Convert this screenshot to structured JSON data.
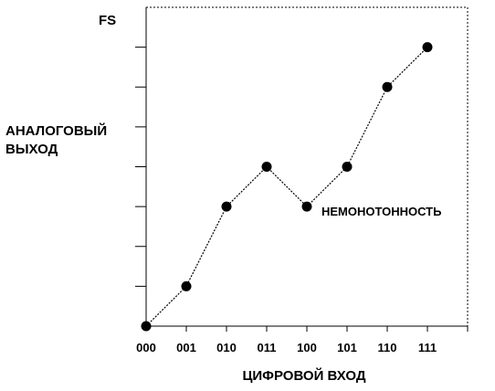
{
  "chart_data": {
    "type": "line",
    "title": "",
    "xlabel": "ЦИФРОВОЙ ВХОД",
    "ylabel_lines": [
      "АНАЛОГОВЫЙ",
      "ВЫХОД"
    ],
    "y_top_label": "FS",
    "annotation": "НЕМОНОТОННОСТЬ",
    "categories": [
      "000",
      "001",
      "010",
      "011",
      "100",
      "101",
      "110",
      "111"
    ],
    "values": [
      0,
      1,
      3,
      4,
      3,
      4,
      6,
      7
    ],
    "ylim": [
      0,
      8
    ],
    "grid": false,
    "colors": {
      "line": "#000000",
      "marker": "#000000",
      "frame": "#000000"
    }
  }
}
